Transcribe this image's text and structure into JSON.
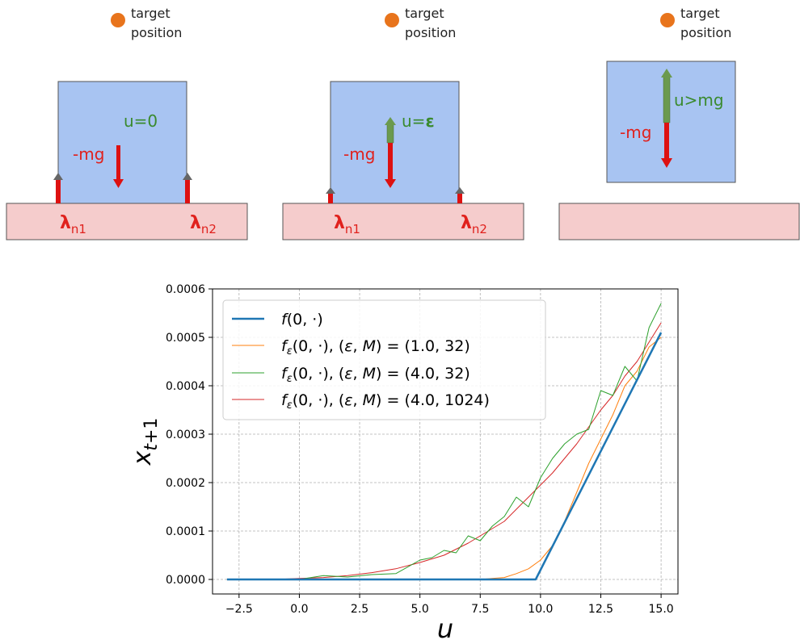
{
  "panels": [
    {
      "target_label": [
        "target",
        "position"
      ],
      "u_label": "u=0",
      "mg_label": "-mg",
      "lambda1": "λ",
      "lambda1_sub": "n1",
      "lambda2": "λ",
      "lambda2_sub": "n2"
    },
    {
      "target_label": [
        "target",
        "position"
      ],
      "u_label": "u=",
      "u_eps": "ε",
      "mg_label": "-mg",
      "lambda1": "λ",
      "lambda1_sub": "n1",
      "lambda2": "λ",
      "lambda2_sub": "n2"
    },
    {
      "target_label": [
        "target",
        "position"
      ],
      "u_label": "u>mg",
      "mg_label": "-mg"
    }
  ],
  "colors": {
    "box": "#a8c4f2",
    "floor": "#f5cccc",
    "red_arrow": "#dd1111",
    "green_arrow": "#6b9a4e",
    "green_text": "#3a8a2e",
    "red_text": "#e0211d",
    "target_dot": "#e8741c"
  },
  "chart_data": {
    "type": "line",
    "xlabel": "u",
    "ylabel": "x_{t+1}",
    "xlim": [
      -3.6,
      15.7
    ],
    "ylim": [
      -3e-05,
      0.0006
    ],
    "xticks": [
      "−2.5",
      "0.0",
      "2.5",
      "5.0",
      "7.5",
      "10.0",
      "12.5",
      "15.0"
    ],
    "xtick_values": [
      -2.5,
      0,
      2.5,
      5,
      7.5,
      10,
      12.5,
      15
    ],
    "yticks": [
      "0.0000",
      "0.0001",
      "0.0002",
      "0.0003",
      "0.0004",
      "0.0005",
      "0.0006"
    ],
    "ytick_values": [
      0,
      0.0001,
      0.0002,
      0.0003,
      0.0004,
      0.0005,
      0.0006
    ],
    "grid": true,
    "legend_position": "top-left",
    "series": [
      {
        "name": "f(0, ·)",
        "color": "#1f77b4",
        "x": [
          -3.0,
          9.8,
          15.0
        ],
        "y": [
          0.0,
          0.0,
          0.00051
        ]
      },
      {
        "name": "f_ε(0, ·), (ε, M) = (1.0, 32)",
        "color": "#ff7f0e",
        "x": [
          -3.0,
          7.5,
          8.0,
          8.5,
          9.0,
          9.5,
          10.0,
          10.5,
          11.0,
          11.5,
          12.0,
          12.5,
          13.0,
          13.5,
          14.0,
          14.5,
          15.0
        ],
        "y": [
          0.0,
          0.0,
          2e-06,
          4e-06,
          1.2e-05,
          2.2e-05,
          4e-05,
          7e-05,
          0.00012,
          0.00018,
          0.00024,
          0.00029,
          0.00034,
          0.0004,
          0.00043,
          0.00048,
          0.0005
        ]
      },
      {
        "name": "f_ε(0, ·), (ε, M) = (4.0, 32)",
        "color": "#2ca02c",
        "x": [
          -3.0,
          0.0,
          1.0,
          2.0,
          3.0,
          4.0,
          5.0,
          5.5,
          6.0,
          6.5,
          7.0,
          7.5,
          8.0,
          8.5,
          9.0,
          9.5,
          10.0,
          10.5,
          11.0,
          11.5,
          12.0,
          12.5,
          13.0,
          13.5,
          14.0,
          14.5,
          15.0
        ],
        "y": [
          0.0,
          0.0,
          8e-06,
          5e-06,
          1e-05,
          1.2e-05,
          4e-05,
          4.5e-05,
          6e-05,
          5.5e-05,
          9e-05,
          8e-05,
          0.00011,
          0.00013,
          0.00017,
          0.00015,
          0.00021,
          0.00025,
          0.00028,
          0.0003,
          0.00031,
          0.00039,
          0.00038,
          0.00044,
          0.00041,
          0.00052,
          0.00057
        ]
      },
      {
        "name": "f_ε(0, ·), (ε, M) = (4.0, 1024)",
        "color": "#d62728",
        "x": [
          -3.0,
          -1.0,
          0.0,
          1.0,
          2.0,
          3.0,
          4.0,
          5.0,
          6.0,
          7.0,
          8.0,
          8.5,
          9.0,
          9.5,
          10.0,
          10.5,
          11.0,
          11.5,
          12.0,
          12.5,
          13.0,
          13.5,
          14.0,
          14.5,
          15.0
        ],
        "y": [
          0.0,
          0.0,
          2e-06,
          4e-06,
          8e-06,
          1.4e-05,
          2.2e-05,
          3.5e-05,
          5e-05,
          7.5e-05,
          0.000105,
          0.00012,
          0.000145,
          0.00017,
          0.000195,
          0.00022,
          0.00025,
          0.00028,
          0.000315,
          0.00035,
          0.00038,
          0.00042,
          0.00045,
          0.00049,
          0.00053
        ]
      }
    ]
  }
}
